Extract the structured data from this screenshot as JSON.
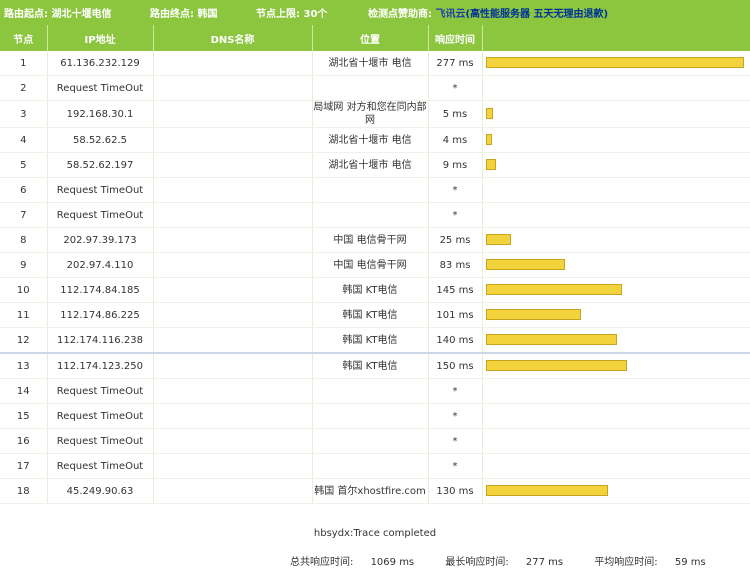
{
  "topbar": {
    "route_start_label": "路由起点:",
    "route_start_value": "湖北十堰电信",
    "route_end_label": "路由终点:",
    "route_end_value": "韩国",
    "node_limit_label": "节点上限:",
    "node_limit_value": "30个",
    "sponsor_label": "检测点赞助商:",
    "sponsor_name": "飞讯云",
    "sponsor_slogan": "(高性能服务器 五天无理由退款)"
  },
  "table": {
    "headers": [
      "节点",
      "IP地址",
      "DNS名称",
      "位置",
      "响应时间",
      ""
    ],
    "rows": [
      {
        "node": "1",
        "ip": "61.136.232.129",
        "dns": "",
        "location": "湖北省十堰市 电信",
        "time": "277 ms",
        "ms": 277
      },
      {
        "node": "2",
        "ip": "Request TimeOut",
        "dns": "",
        "location": "",
        "time": "*",
        "ms": 0
      },
      {
        "node": "3",
        "ip": "192.168.30.1",
        "dns": "",
        "location": "局域网 对方和您在同内部网",
        "time": "5 ms",
        "ms": 5
      },
      {
        "node": "4",
        "ip": "58.52.62.5",
        "dns": "",
        "location": "湖北省十堰市 电信",
        "time": "4 ms",
        "ms": 4
      },
      {
        "node": "5",
        "ip": "58.52.62.197",
        "dns": "",
        "location": "湖北省十堰市 电信",
        "time": "9 ms",
        "ms": 9
      },
      {
        "node": "6",
        "ip": "Request TimeOut",
        "dns": "",
        "location": "",
        "time": "*",
        "ms": 0
      },
      {
        "node": "7",
        "ip": "Request TimeOut",
        "dns": "",
        "location": "",
        "time": "*",
        "ms": 0
      },
      {
        "node": "8",
        "ip": "202.97.39.173",
        "dns": "",
        "location": "中国 电信骨干网",
        "time": "25 ms",
        "ms": 25
      },
      {
        "node": "9",
        "ip": "202.97.4.110",
        "dns": "",
        "location": "中国 电信骨干网",
        "time": "83 ms",
        "ms": 83
      },
      {
        "node": "10",
        "ip": "112.174.84.185",
        "dns": "",
        "location": "韩国 KT电信",
        "time": "145 ms",
        "ms": 145
      },
      {
        "node": "11",
        "ip": "112.174.86.225",
        "dns": "",
        "location": "韩国 KT电信",
        "time": "101 ms",
        "ms": 101
      },
      {
        "node": "12",
        "ip": "112.174.116.238",
        "dns": "",
        "location": "韩国 KT电信",
        "time": "140 ms",
        "ms": 140
      },
      {
        "node": "13",
        "ip": "112.174.123.250",
        "dns": "",
        "location": "韩国 KT电信",
        "time": "150 ms",
        "ms": 150
      },
      {
        "node": "14",
        "ip": "Request TimeOut",
        "dns": "",
        "location": "",
        "time": "*",
        "ms": 0
      },
      {
        "node": "15",
        "ip": "Request TimeOut",
        "dns": "",
        "location": "",
        "time": "*",
        "ms": 0
      },
      {
        "node": "16",
        "ip": "Request TimeOut",
        "dns": "",
        "location": "",
        "time": "*",
        "ms": 0
      },
      {
        "node": "17",
        "ip": "Request TimeOut",
        "dns": "",
        "location": "",
        "time": "*",
        "ms": 0
      },
      {
        "node": "18",
        "ip": "45.249.90.63",
        "dns": "",
        "location": "韩国 首尔xhostfire.com",
        "time": "130 ms",
        "ms": 130
      }
    ]
  },
  "footer": {
    "status": "hbsydx:Trace completed",
    "total_label": "总共响应时间:",
    "total_value": "1069 ms",
    "max_label": "最长响应时间:",
    "max_value": "277 ms",
    "avg_label": "平均响应时间:",
    "avg_value": "59 ms"
  },
  "colors": {
    "accent": "#8cc63f",
    "bar": "#f2d33b"
  }
}
